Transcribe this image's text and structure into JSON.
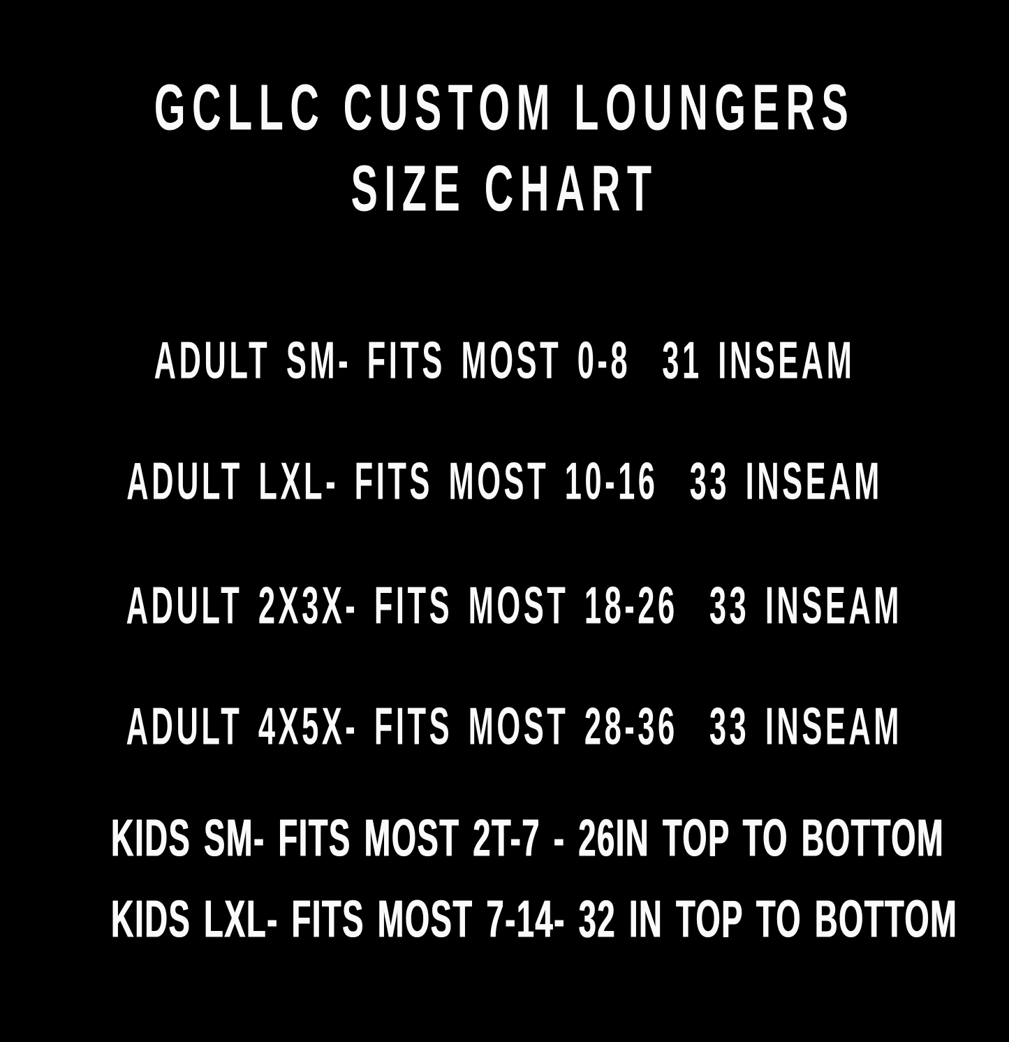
{
  "colors": {
    "background": "#000000",
    "text": "#fafafa"
  },
  "title": {
    "line1": "GCLLC CUSTOM LOUNGERS",
    "line2": "SIZE CHART"
  },
  "rows": [
    {
      "size": "ADULT SM",
      "fits": "0-8",
      "measurement": "31 INSEAM",
      "text": "ADULT SM- FITS MOST 0-8  31 INSEAM"
    },
    {
      "size": "ADULT LXL",
      "fits": "10-16",
      "measurement": "33 INSEAM",
      "text": "ADULT LXL- FITS MOST 10-16  33 INSEAM"
    },
    {
      "size": "ADULT 2X3X",
      "fits": "18-26",
      "measurement": "33 INSEAM",
      "text": "ADULT 2X3X- FITS MOST 18-26  33 INSEAM"
    },
    {
      "size": "ADULT 4X5X",
      "fits": "28-36",
      "measurement": "33 INSEAM",
      "text": "ADULT 4X5X- FITS MOST 28-36  33 INSEAM"
    },
    {
      "size": "KIDS SM",
      "fits": "2T-7",
      "measurement": "26IN TOP TO BOTTOM",
      "text": "KIDS SM- FITS MOST 2T-7 - 26IN TOP TO BOTTOM"
    },
    {
      "size": "KIDS LXL",
      "fits": "7-14",
      "measurement": "32 IN TOP TO BOTTOM",
      "text": "KIDS LXL- FITS MOST 7-14- 32 IN TOP TO BOTTOM"
    }
  ]
}
